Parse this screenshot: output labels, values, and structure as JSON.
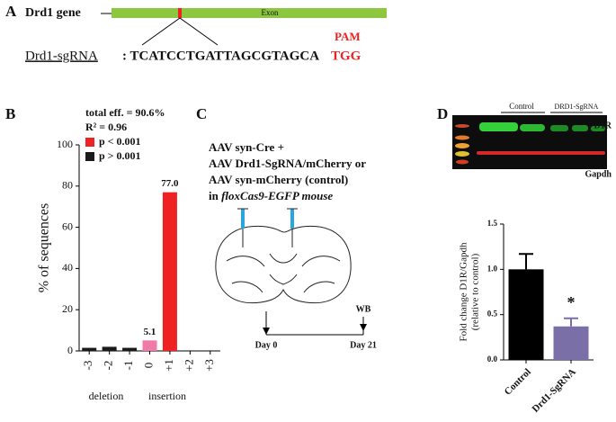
{
  "panel_labels": [
    "A",
    "B",
    "C",
    "D"
  ],
  "panel_a": {
    "gene_label": "Drd1 gene",
    "exon_label": "Exon",
    "sgrna_label": "Drd1-sgRNA",
    "sequence": ": TCATCCTGATTAGCGTAGCA",
    "pam_sequence": "TGG",
    "pam_label": "PAM"
  },
  "panel_c": {
    "lines": [
      "AAV syn-Cre +",
      "AAV Drd1-SgRNA/mCherry or",
      "AAV syn-mCherry (control)"
    ],
    "mouse_prefix": "in ",
    "mouse_label": "floxCas9-EGFP mouse",
    "start_label": "Day 0",
    "end_label": "Day 21",
    "wb_label": "WB"
  },
  "panel_d_blot": {
    "control_label": "Control",
    "sgrna_label": "DRD1-SgRNA",
    "d1r_label": "D1R",
    "gapdh_label": "Gapdh"
  },
  "chart_data": [
    {
      "type": "bar",
      "ylabel": "% of sequences",
      "categories": [
        "-3",
        "-2",
        "-1",
        "0",
        "+1",
        "+2",
        "+3"
      ],
      "values": [
        1.5,
        2,
        1.5,
        5.1,
        77.0,
        0,
        0
      ],
      "value_labels": [
        null,
        null,
        null,
        "5.1",
        "77.0",
        null,
        null
      ],
      "colors": [
        "#1a1a1a",
        "#1a1a1a",
        "#1a1a1a",
        "#f07aa8",
        "#ee2222",
        "#1a1a1a",
        "#1a1a1a"
      ],
      "ylim": [
        0,
        100
      ],
      "yticks": [
        0,
        20,
        40,
        60,
        80,
        100
      ],
      "annotations": [
        "total eff. = 90.6%",
        "R² = 0.96"
      ],
      "legend": [
        {
          "name": "p < 0.001",
          "color": "#ee2222"
        },
        {
          "name": "p > 0.001",
          "color": "#1a1a1a"
        }
      ],
      "group_labels": [
        "deletion",
        "insertion"
      ]
    },
    {
      "type": "bar",
      "ylabel": [
        "Fold change D1R/Gapdh",
        "(relative to control)"
      ],
      "categories": [
        "Control",
        "Drd1-SgRNA"
      ],
      "values": [
        1.0,
        0.37
      ],
      "errors": [
        0.17,
        0.09
      ],
      "colors": [
        "#000000",
        "#7b6fa8"
      ],
      "ylim": [
        0,
        1.5
      ],
      "yticks": [
        {
          "value": 0,
          "label": "0.0"
        },
        0.5,
        {
          "value": 1,
          "label": "1.0"
        },
        1.5
      ],
      "annotations": [
        "*"
      ]
    }
  ]
}
